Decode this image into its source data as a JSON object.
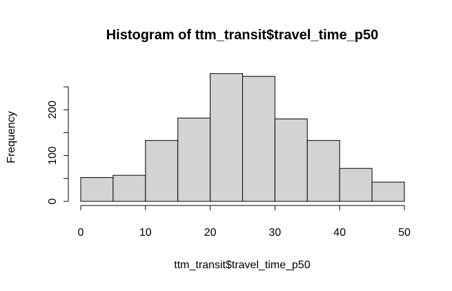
{
  "chart_data": {
    "type": "bar",
    "title": "Histogram of ttm_transit$travel_time_p50",
    "xlabel": "ttm_transit$travel_time_p50",
    "ylabel": "Frequency",
    "bin_edges": [
      0,
      5,
      10,
      15,
      20,
      25,
      30,
      35,
      40,
      45,
      50
    ],
    "values": [
      52,
      57,
      133,
      182,
      279,
      273,
      180,
      133,
      72,
      42
    ],
    "xlim": [
      0,
      50
    ],
    "ylim": [
      0,
      250
    ],
    "x_ticks": [
      0,
      10,
      20,
      30,
      40,
      50
    ],
    "y_ticks": [
      0,
      50,
      100,
      150,
      200,
      250
    ],
    "y_tick_labels": [
      "0",
      "",
      "100",
      "",
      "200",
      ""
    ],
    "grid": false,
    "bar_fill": "#d3d3d3",
    "bar_stroke": "#000000"
  }
}
